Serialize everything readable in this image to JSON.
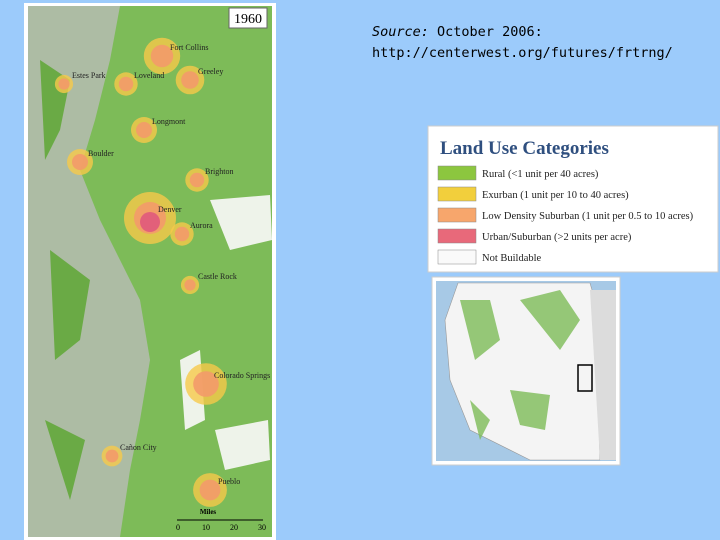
{
  "source": {
    "label": "Source:",
    "text": "October 2006:",
    "url": "http://centerwest.org/futures/frtrng/"
  },
  "map": {
    "year": "1960",
    "places": [
      "Fort Collins",
      "Estes Park",
      "Loveland",
      "Greeley",
      "Longmont",
      "Boulder",
      "Brighton",
      "Denver",
      "Aurora",
      "Castle Rock",
      "Colorado Springs",
      "Cañon City",
      "Pueblo"
    ],
    "scale": {
      "title": "Miles",
      "ticks": [
        0,
        10,
        20,
        30
      ]
    }
  },
  "legend": {
    "title": "Land Use Categories",
    "items": [
      "Rural (<1 unit per 40 acres)",
      "Exurban (1 unit per 10 to 40 acres)",
      "Low Density Suburban (1 unit per 0.5 to 10 acres)",
      "Urban/Suburban (>2 units per acre)",
      "Not Buildable"
    ]
  }
}
